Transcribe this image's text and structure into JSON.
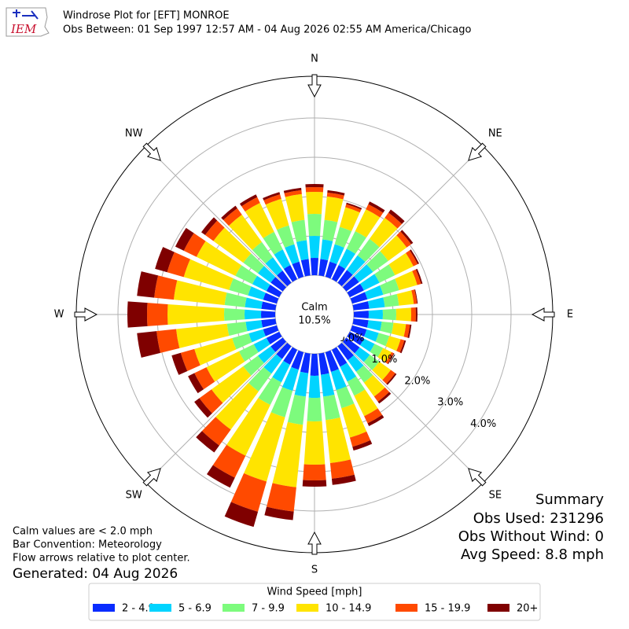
{
  "chart_data": {
    "type": "windrose",
    "logo_text": "IEM",
    "title": "Windrose Plot for [EFT] MONROE",
    "subtitle": "Obs Between: 01 Sep 1997 12:57 AM - 04 Aug 2026 02:55 AM America/Chicago",
    "direction_labels": [
      "N",
      "NE",
      "E",
      "SE",
      "S",
      "SW",
      "W",
      "NW"
    ],
    "x": [
      0,
      10,
      20,
      30,
      40,
      50,
      60,
      70,
      80,
      90,
      100,
      110,
      120,
      130,
      140,
      150,
      160,
      170,
      180,
      190,
      200,
      210,
      220,
      230,
      240,
      250,
      260,
      270,
      280,
      290,
      300,
      310,
      320,
      330,
      340,
      350
    ],
    "rlim": [
      0,
      5.06
    ],
    "rticks": [
      {
        "value": 0,
        "label": "0.0%"
      },
      {
        "value": 1,
        "label": "1.0%"
      },
      {
        "value": 2,
        "label": "2.0%"
      },
      {
        "value": 3,
        "label": "3.0%"
      },
      {
        "value": 4,
        "label": "4.0%"
      }
    ],
    "grid": true,
    "calm": {
      "label": "Calm",
      "value": 10.5,
      "value_label": "10.5%"
    },
    "legend_title": "Wind Speed [mph]",
    "series": [
      {
        "name": "2 - 4.9",
        "color": "#0a2cff",
        "values": [
          0.44,
          0.42,
          0.4,
          0.4,
          0.4,
          0.4,
          0.4,
          0.4,
          0.4,
          0.38,
          0.38,
          0.38,
          0.4,
          0.42,
          0.44,
          0.48,
          0.52,
          0.54,
          0.56,
          0.5,
          0.46,
          0.42,
          0.4,
          0.38,
          0.36,
          0.36,
          0.36,
          0.36,
          0.36,
          0.36,
          0.36,
          0.38,
          0.38,
          0.4,
          0.4,
          0.42
        ]
      },
      {
        "name": "5 - 6.9",
        "color": "#00d4ff",
        "values": [
          0.56,
          0.5,
          0.46,
          0.46,
          0.46,
          0.44,
          0.44,
          0.42,
          0.4,
          0.36,
          0.34,
          0.32,
          0.3,
          0.32,
          0.36,
          0.42,
          0.48,
          0.56,
          0.56,
          0.6,
          0.56,
          0.5,
          0.46,
          0.4,
          0.36,
          0.38,
          0.4,
          0.42,
          0.42,
          0.4,
          0.4,
          0.4,
          0.42,
          0.44,
          0.46,
          0.48
        ]
      },
      {
        "name": "7 - 9.9",
        "color": "#7dfb7d",
        "values": [
          0.56,
          0.5,
          0.46,
          0.5,
          0.52,
          0.48,
          0.44,
          0.42,
          0.36,
          0.34,
          0.3,
          0.28,
          0.24,
          0.3,
          0.34,
          0.4,
          0.48,
          0.6,
          0.6,
          0.72,
          0.7,
          0.64,
          0.56,
          0.46,
          0.42,
          0.44,
          0.48,
          0.52,
          0.52,
          0.5,
          0.48,
          0.46,
          0.48,
          0.5,
          0.5,
          0.52
        ]
      },
      {
        "name": "10 - 14.9",
        "color": "#ffe400",
        "values": [
          0.56,
          0.6,
          0.52,
          0.62,
          0.66,
          0.58,
          0.52,
          0.48,
          0.38,
          0.38,
          0.32,
          0.3,
          0.24,
          0.36,
          0.44,
          0.58,
          0.78,
          1.1,
          1.1,
          1.6,
          1.7,
          1.44,
          1.2,
          1.0,
          0.92,
          1.0,
          1.3,
          1.44,
          1.3,
          1.2,
          1.1,
          0.94,
          0.86,
          0.82,
          0.7,
          0.66
        ]
      },
      {
        "name": "15 - 19.9",
        "color": "#ff4a00",
        "values": [
          0.12,
          0.1,
          0.08,
          0.14,
          0.16,
          0.14,
          0.12,
          0.1,
          0.08,
          0.12,
          0.1,
          0.1,
          0.06,
          0.14,
          0.16,
          0.2,
          0.24,
          0.4,
          0.4,
          0.62,
          0.8,
          0.62,
          0.5,
          0.38,
          0.34,
          0.36,
          0.5,
          0.52,
          0.5,
          0.44,
          0.36,
          0.26,
          0.2,
          0.16,
          0.12,
          0.1
        ]
      },
      {
        "name": "20+",
        "color": "#7f0000",
        "values": [
          0.08,
          0.06,
          0.04,
          0.08,
          0.1,
          0.06,
          0.04,
          0.04,
          0.02,
          0.04,
          0.04,
          0.04,
          0.02,
          0.04,
          0.06,
          0.08,
          0.1,
          0.16,
          0.16,
          0.22,
          0.4,
          0.28,
          0.22,
          0.16,
          0.18,
          0.24,
          0.5,
          0.5,
          0.44,
          0.32,
          0.24,
          0.12,
          0.08,
          0.08,
          0.06,
          0.06
        ]
      }
    ],
    "notes": [
      "Calm values are < 2.0 mph",
      "Bar Convention: Meteorology",
      "Flow arrows relative to plot center."
    ],
    "generated": "Generated: 04 Aug 2026",
    "summary": [
      "Summary",
      "Obs Used: 231296",
      "Obs Without Wind: 0",
      "Avg Speed: 8.8 mph"
    ]
  }
}
